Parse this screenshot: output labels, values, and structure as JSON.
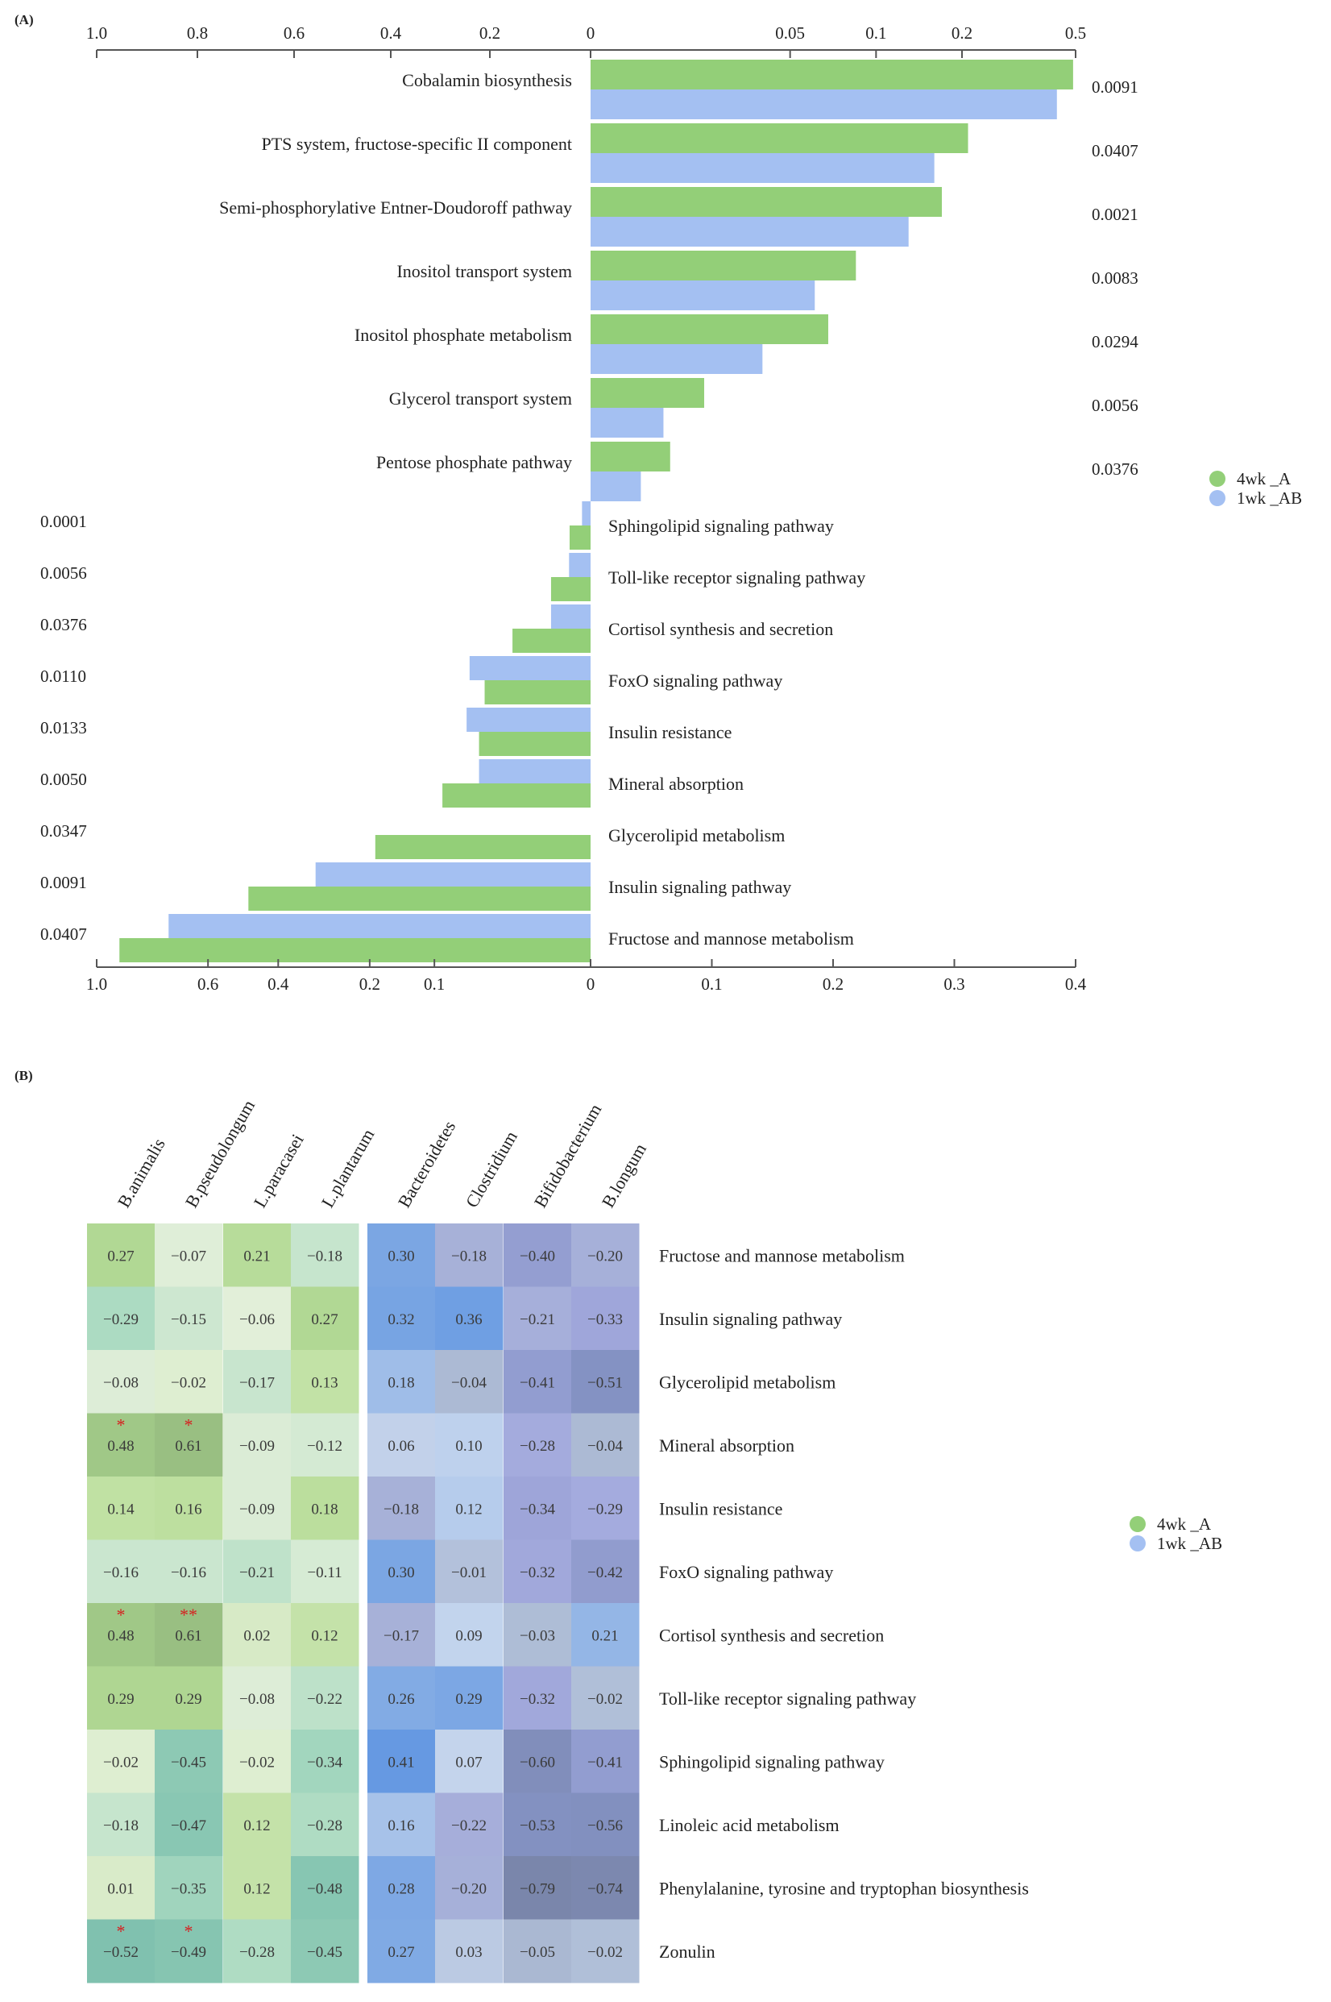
{
  "colors": {
    "green": "#93cf78",
    "blue": "#a4c0f2",
    "axis": "#555555",
    "star": "#d62020"
  },
  "chart_data": [
    {
      "panel": "(A)",
      "type": "bar",
      "orientation": "horizontal",
      "legend": [
        {
          "name": "4wk _A",
          "color": "#93cf78"
        },
        {
          "name": "1wk _AB",
          "color": "#a4c0f2"
        }
      ],
      "legend_position": "right",
      "top_axis": {
        "left_ticks": [
          "1.0",
          "0.8",
          "0.6",
          "0.4",
          "0.2",
          "0"
        ],
        "right_ticks": [
          "0.05",
          "0.1",
          "0.2",
          "0.5"
        ],
        "right_scale": "log",
        "right_range": [
          0.01,
          0.5
        ]
      },
      "bottom_axis": {
        "left_ticks": [
          "1.0",
          "0.6",
          "0.4",
          "0.2",
          "0.1",
          "0"
        ],
        "right_ticks": [
          "0.1",
          "0.2",
          "0.3",
          "0.4"
        ],
        "left_scale": "sqrt",
        "left_range": [
          0,
          1.0
        ],
        "right_range": [
          0,
          0.4
        ]
      },
      "upper_group": [
        {
          "label": "Cobalamin biosynthesis",
          "p": "0.0091",
          "green": 0.49,
          "blue": 0.43
        },
        {
          "label": "PTS system, fructose-specific II component",
          "p": "0.0407",
          "green": 0.21,
          "blue": 0.16
        },
        {
          "label": "Semi-phosphorylative Entner-Doudoroff pathway",
          "p": "0.0021",
          "green": 0.17,
          "blue": 0.13
        },
        {
          "label": "Inositol transport system",
          "p": "0.0083",
          "green": 0.085,
          "blue": 0.061
        },
        {
          "label": "Inositol phosphate metabolism",
          "p": "0.0294",
          "green": 0.068,
          "blue": 0.04
        },
        {
          "label": "Glycerol transport system",
          "p": "0.0056",
          "green": 0.025,
          "blue": 0.018
        },
        {
          "label": "Pentose phosphate pathway",
          "p": "0.0376",
          "green": 0.019,
          "blue": 0.015
        }
      ],
      "lower_group": [
        {
          "label": "Sphingolipid signaling pathway",
          "p": "0.0001",
          "blue": 0.0003,
          "green": 0.0018
        },
        {
          "label": "Toll-like receptor signaling pathway",
          "p": "0.0056",
          "blue": 0.0019,
          "green": 0.0064
        },
        {
          "label": "Cortisol synthesis and secretion",
          "p": "0.0376",
          "blue": 0.0064,
          "green": 0.025
        },
        {
          "label": "FoxO signaling pathway",
          "p": "0.0110",
          "blue": 0.06,
          "green": 0.046
        },
        {
          "label": "Insulin resistance",
          "p": "0.0133",
          "blue": 0.063,
          "green": 0.051
        },
        {
          "label": "Mineral absorption",
          "p": "0.0050",
          "blue": 0.051,
          "green": 0.09
        },
        {
          "label": "Glycerolipid metabolism",
          "p": "0.0347",
          "blue": 0,
          "green": 0.19
        },
        {
          "label": "Insulin signaling pathway",
          "p": "0.0091",
          "blue": 0.31,
          "green": 0.48
        },
        {
          "label": "Fructose and mannose metabolism",
          "p": "0.0407",
          "blue": 0.73,
          "green": 0.91
        }
      ]
    },
    {
      "panel": "(B)",
      "type": "heatmap",
      "columns": [
        "B.animalis",
        "B.pseudolongum",
        "L.paracasei",
        "L.plantarum",
        "Bacteroidetes",
        "Clostridium",
        "Bifidobacterium",
        "B.longum"
      ],
      "rows": [
        "Fructose and mannose metabolism",
        "Insulin signaling pathway",
        "Glycerolipid metabolism",
        "Mineral absorption",
        "Insulin resistance",
        "FoxO signaling pathway",
        "Cortisol synthesis and secretion",
        "Toll-like receptor signaling pathway",
        "Sphingolipid signaling pathway",
        "Linoleic acid metabolism",
        "Phenylalanine, tyrosine and tryptophan biosynthesis",
        "Zonulin"
      ],
      "values": [
        [
          "0.27",
          "−0.07",
          "0.21",
          "−0.18",
          "0.30",
          "−0.18",
          "−0.40",
          "−0.20"
        ],
        [
          "−0.29",
          "−0.15",
          "−0.06",
          "0.27",
          "0.32",
          "0.36",
          "−0.21",
          "−0.33"
        ],
        [
          "−0.08",
          "−0.02",
          "−0.17",
          "0.13",
          "0.18",
          "−0.04",
          "−0.41",
          "−0.51"
        ],
        [
          "0.48",
          "0.61",
          "−0.09",
          "−0.12",
          "0.06",
          "0.10",
          "−0.28",
          "−0.04"
        ],
        [
          "0.14",
          "0.16",
          "−0.09",
          "0.18",
          "−0.18",
          "0.12",
          "−0.34",
          "−0.29"
        ],
        [
          "−0.16",
          "−0.16",
          "−0.21",
          "−0.11",
          "0.30",
          "−0.01",
          "−0.32",
          "−0.42"
        ],
        [
          "0.48",
          "0.61",
          "0.02",
          "0.12",
          "−0.17",
          "0.09",
          "−0.03",
          "0.21"
        ],
        [
          "0.29",
          "0.29",
          "−0.08",
          "−0.22",
          "0.26",
          "0.29",
          "−0.32",
          "−0.02"
        ],
        [
          "−0.02",
          "−0.45",
          "−0.02",
          "−0.34",
          "0.41",
          "0.07",
          "−0.60",
          "−0.41"
        ],
        [
          "−0.18",
          "−0.47",
          "0.12",
          "−0.28",
          "0.16",
          "−0.22",
          "−0.53",
          "−0.56"
        ],
        [
          "0.01",
          "−0.35",
          "0.12",
          "−0.48",
          "0.28",
          "−0.20",
          "−0.79",
          "−0.74"
        ],
        [
          "−0.52",
          "−0.49",
          "−0.28",
          "−0.45",
          "0.27",
          "0.03",
          "−0.05",
          "−0.02"
        ]
      ],
      "significance": [
        {
          "row": 3,
          "col": 0,
          "mark": "*"
        },
        {
          "row": 3,
          "col": 1,
          "mark": "*"
        },
        {
          "row": 6,
          "col": 0,
          "mark": "*"
        },
        {
          "row": 6,
          "col": 1,
          "mark": "**"
        },
        {
          "row": 11,
          "col": 0,
          "mark": "*"
        },
        {
          "row": 11,
          "col": 1,
          "mark": "*"
        }
      ],
      "legend": [
        {
          "name": "4wk _A",
          "color": "#93cf78"
        },
        {
          "name": "1wk _AB",
          "color": "#a4c0f2"
        }
      ],
      "legend_position": "right"
    }
  ]
}
